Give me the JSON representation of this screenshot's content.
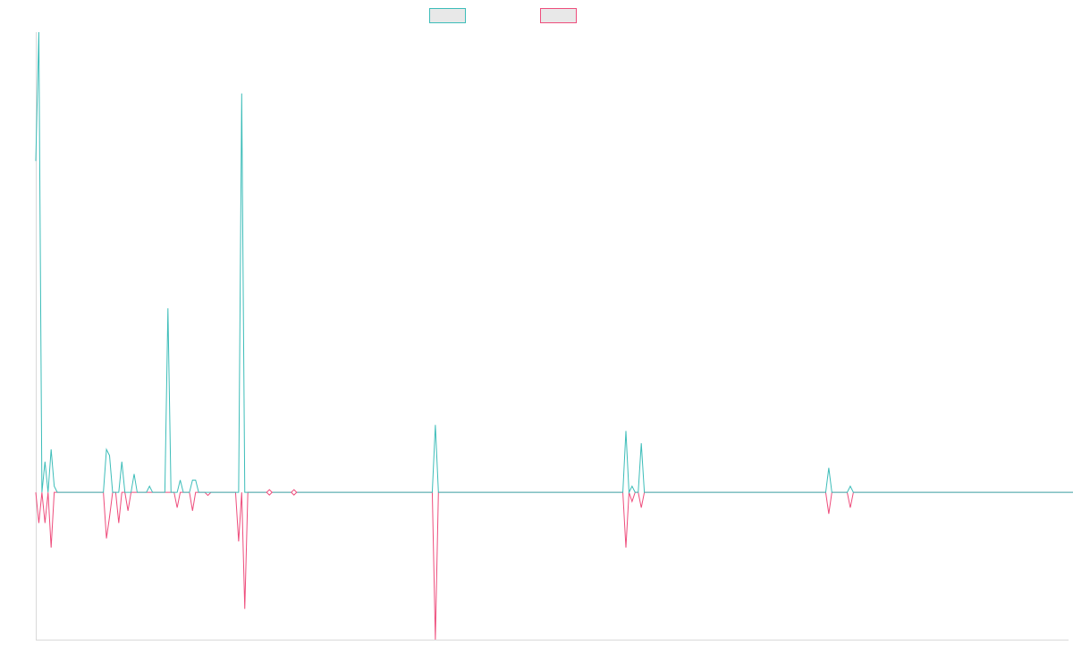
{
  "colors": {
    "series_a": "#3dbdb9",
    "series_b": "#ee4d7c",
    "axis": "#d9d9d9",
    "legend_fill": "#e8e8e8"
  },
  "chart_data": {
    "type": "line",
    "title": "",
    "xlabel": "",
    "ylabel": "",
    "xlim": [
      0,
      336
    ],
    "ylim": [
      -24,
      75
    ],
    "grid": false,
    "legend": "top-center",
    "series": [
      {
        "values": [
          54,
          75,
          0,
          5,
          0,
          7,
          1,
          0,
          0,
          0,
          0,
          0,
          0,
          0,
          0,
          0,
          0,
          0,
          0,
          0,
          0,
          0,
          0,
          7,
          6,
          0,
          0,
          0,
          5,
          0,
          0,
          0,
          3,
          0,
          0,
          0,
          0,
          1,
          0,
          0,
          0,
          0,
          0,
          30,
          0,
          0,
          0,
          2,
          0,
          0,
          0,
          2,
          2,
          0,
          0,
          0,
          0,
          0,
          0,
          0,
          0,
          0,
          0,
          0,
          0,
          0,
          0,
          65,
          0,
          0,
          0,
          0,
          0,
          0,
          0,
          0,
          0,
          0,
          0,
          0,
          0,
          0,
          0,
          0,
          0,
          0,
          0,
          0,
          0,
          0,
          0,
          0,
          0,
          0,
          0,
          0,
          0,
          0,
          0,
          0,
          0,
          0,
          0,
          0,
          0,
          0,
          0,
          0,
          0,
          0,
          0,
          0,
          0,
          0,
          0,
          0,
          0,
          0,
          0,
          0,
          0,
          0,
          0,
          0,
          0,
          0,
          0,
          0,
          0,
          0,
          11,
          0,
          0,
          0,
          0,
          0,
          0,
          0,
          0,
          0,
          0,
          0,
          0,
          0,
          0,
          0,
          0,
          0,
          0,
          0,
          0,
          0,
          0,
          0,
          0,
          0,
          0,
          0,
          0,
          0,
          0,
          0,
          0,
          0,
          0,
          0,
          0,
          0,
          0,
          0,
          0,
          0,
          0,
          0,
          0,
          0,
          0,
          0,
          0,
          0,
          0,
          0,
          0,
          0,
          0,
          0,
          0,
          0,
          0,
          0,
          0,
          0,
          10,
          0,
          1,
          0,
          0,
          8,
          0,
          0,
          0,
          0,
          0,
          0,
          0,
          0,
          0,
          0,
          0,
          0,
          0,
          0,
          0,
          0,
          0,
          0,
          0,
          0,
          0,
          0,
          0,
          0,
          0,
          0,
          0,
          0,
          0,
          0,
          0,
          0,
          0,
          0,
          0,
          0,
          0,
          0,
          0,
          0,
          0,
          0,
          0,
          0,
          0,
          0,
          0,
          0,
          0,
          0,
          0,
          0,
          0,
          0,
          0,
          0,
          0,
          0,
          0,
          0,
          4,
          0,
          0,
          0,
          0,
          0,
          0,
          1,
          0,
          0,
          0,
          0,
          0,
          0,
          0,
          0,
          0,
          0,
          0,
          0,
          0,
          0,
          0,
          0,
          0,
          0,
          0,
          0,
          0,
          0,
          0,
          0,
          0,
          0,
          0,
          0,
          0,
          0,
          0,
          0,
          0,
          0,
          0,
          0,
          0,
          0,
          0,
          0,
          0,
          0,
          0,
          0,
          0,
          0,
          0,
          0,
          0,
          0,
          0,
          0,
          0,
          0,
          0,
          0,
          0,
          0,
          0,
          0,
          0,
          0,
          0,
          0,
          0,
          0,
          0,
          0,
          0,
          0,
          0,
          0,
          0,
          0,
          0
        ]
      },
      {
        "values": [
          0,
          -5,
          0,
          -5,
          0,
          -9,
          0,
          0,
          0,
          0,
          0,
          0,
          0,
          0,
          0,
          0,
          0,
          0,
          0,
          0,
          0,
          0,
          0,
          -7.5,
          -4,
          0,
          0,
          -5,
          0,
          0,
          -3,
          0,
          0,
          0,
          0,
          0,
          0,
          0,
          0,
          0,
          0,
          0,
          0,
          0,
          0,
          0,
          -2.5,
          0,
          0,
          0,
          0,
          -3,
          0,
          0,
          0,
          0,
          -0.5,
          0,
          0,
          0,
          0,
          0,
          0,
          0,
          0,
          0,
          -8,
          0,
          -19,
          0,
          0,
          0,
          0,
          0,
          0,
          0,
          0,
          0,
          0,
          0,
          0,
          0,
          0,
          0,
          0,
          0,
          0,
          0,
          0,
          0,
          0,
          0,
          0,
          0,
          0,
          0,
          0,
          0,
          0,
          0,
          0,
          0,
          0,
          0,
          0,
          0,
          0,
          0,
          0,
          0,
          0,
          0,
          0,
          0,
          0,
          0,
          0,
          0,
          0,
          0,
          0,
          0,
          0,
          0,
          0,
          0,
          0,
          0,
          0,
          0,
          -24,
          0,
          0,
          0,
          0,
          0,
          0,
          0,
          0,
          0,
          0,
          0,
          0,
          0,
          0,
          0,
          0,
          0,
          0,
          0,
          0,
          0,
          0,
          0,
          0,
          0,
          0,
          0,
          0,
          0,
          0,
          0,
          0,
          0,
          0,
          0,
          0,
          0,
          0,
          0,
          0,
          0,
          0,
          0,
          0,
          0,
          0,
          0,
          0,
          0,
          0,
          0,
          0,
          0,
          0,
          0,
          0,
          0,
          0,
          0,
          0,
          0,
          -9,
          0,
          -1.5,
          0,
          0,
          -2.5,
          0,
          0,
          0,
          0,
          0,
          0,
          0,
          0,
          0,
          0,
          0,
          0,
          0,
          0,
          0,
          0,
          0,
          0,
          0,
          0,
          0,
          0,
          0,
          0,
          0,
          0,
          0,
          0,
          0,
          0,
          0,
          0,
          0,
          0,
          0,
          0,
          0,
          0,
          0,
          0,
          0,
          0,
          0,
          0,
          0,
          0,
          0,
          0,
          0,
          0,
          0,
          0,
          0,
          0,
          0,
          0,
          0,
          0,
          0,
          0,
          -3.5,
          0,
          0,
          0,
          0,
          0,
          0,
          -2.5,
          0,
          0,
          0,
          0,
          0,
          0,
          0,
          0,
          0,
          0,
          0,
          0,
          0,
          0,
          0,
          0,
          0,
          0,
          0,
          0,
          0,
          0,
          0,
          0,
          0,
          0,
          0,
          0,
          0,
          0,
          0,
          0,
          0,
          0,
          0,
          0,
          0,
          0,
          0,
          0,
          0,
          0,
          0,
          0,
          0,
          0,
          0,
          0,
          0,
          0,
          0,
          0,
          0,
          0,
          0,
          0,
          0,
          0,
          0,
          0,
          0,
          0,
          0,
          0,
          0,
          0,
          0,
          0,
          0,
          0,
          0,
          0,
          0
        ],
        "markers": [
          76,
          84
        ]
      }
    ]
  }
}
